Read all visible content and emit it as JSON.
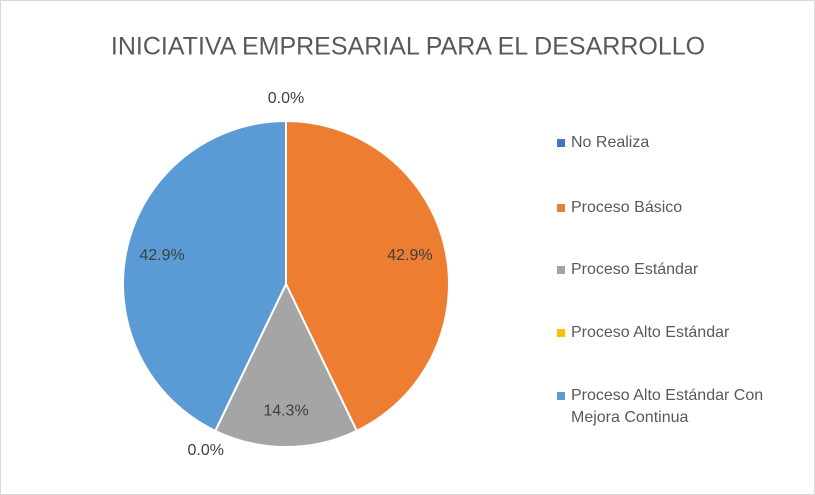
{
  "chart_data": {
    "type": "pie",
    "title": "INICIATIVA EMPRESARIAL PARA EL DESARROLLO",
    "categories": [
      "No Realiza",
      "Proceso Básico",
      "Proceso Estándar",
      "Proceso Alto Estándar",
      "Proceso Alto Estándar Con Mejora Continua"
    ],
    "values": [
      0,
      42.9,
      14.3,
      0,
      42.9
    ],
    "value_labels": [
      "0.0%",
      "42.9%",
      "14.3%",
      "0.0%",
      "42.9%"
    ],
    "colors": [
      "#4472c4",
      "#ed7d31",
      "#a5a5a5",
      "#ffc000",
      "#5b9bd5"
    ],
    "legend": "right"
  }
}
